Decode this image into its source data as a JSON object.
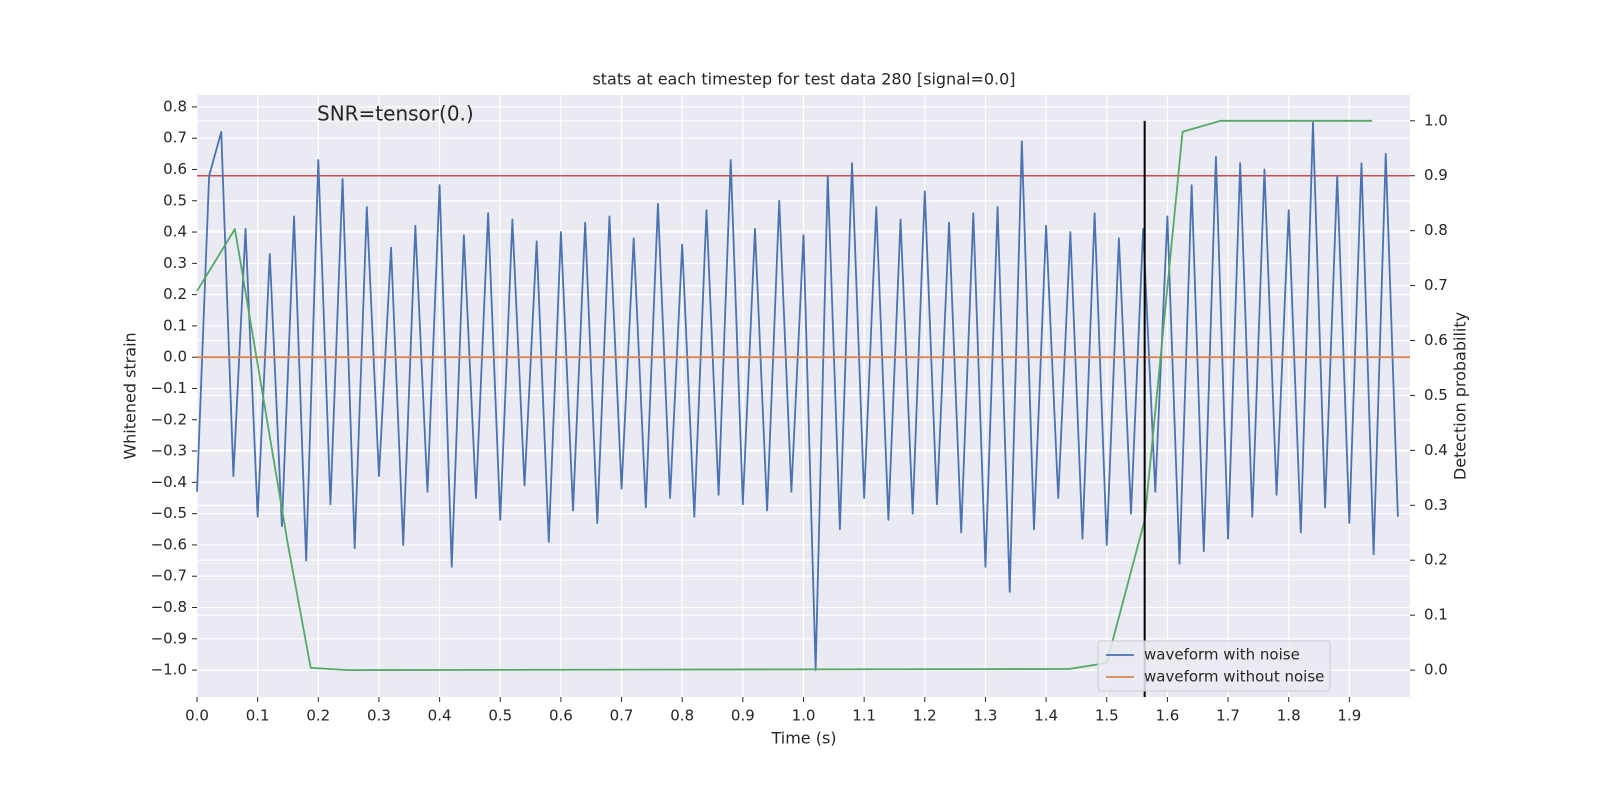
{
  "chart_data": {
    "type": "line",
    "title": "stats at each timestep for test data 280 [signal=0.0]",
    "annotation": "SNR=tensor(0.)",
    "xlabel": "Time (s)",
    "ylabel": "Whitened strain",
    "y2label": "Detection probability",
    "xlim": [
      0,
      2.0
    ],
    "ylim": [
      -1.086,
      0.838
    ],
    "y2lim": [
      -0.049,
      1.047
    ],
    "xticks": [
      {
        "value": 0,
        "label": "0.0"
      },
      0.1,
      0.2,
      0.3,
      0.4,
      0.5,
      0.6,
      0.7,
      0.8,
      0.9,
      {
        "value": 1,
        "label": "1.0"
      },
      1.1,
      1.2,
      1.3,
      1.4,
      1.5,
      1.6,
      1.7,
      1.8,
      1.9
    ],
    "yticks": [
      {
        "value": -1.0,
        "label": "−1.0"
      },
      {
        "value": -0.9,
        "label": "−0.9"
      },
      {
        "value": -0.8,
        "label": "−0.8"
      },
      {
        "value": -0.7,
        "label": "−0.7"
      },
      {
        "value": -0.6,
        "label": "−0.6"
      },
      {
        "value": -0.5,
        "label": "−0.5"
      },
      {
        "value": -0.4,
        "label": "−0.4"
      },
      {
        "value": -0.3,
        "label": "−0.3"
      },
      {
        "value": -0.2,
        "label": "−0.2"
      },
      {
        "value": -0.1,
        "label": "−0.1"
      },
      {
        "value": 0,
        "label": "0.0"
      },
      0.1,
      0.2,
      0.3,
      0.4,
      0.5,
      0.6,
      0.7,
      0.8
    ],
    "y2ticks": [
      {
        "value": 0,
        "label": "0.0"
      },
      0.1,
      0.2,
      0.3,
      0.4,
      0.5,
      0.6,
      0.7,
      0.8,
      0.9,
      {
        "value": 1,
        "label": "1.0"
      }
    ],
    "grid": true,
    "legend": "lower right",
    "series": [
      {
        "name": "waveform with noise",
        "color": "#4c72b0",
        "x": [
          0,
          0.02,
          0.04,
          0.06,
          0.08,
          0.1,
          0.12,
          0.14,
          0.16,
          0.18,
          0.2,
          0.22,
          0.24,
          0.26,
          0.28,
          0.3,
          0.32,
          0.34,
          0.36,
          0.38,
          0.4,
          0.42,
          0.44,
          0.46,
          0.48,
          0.5,
          0.52,
          0.54,
          0.56,
          0.58,
          0.6,
          0.62,
          0.64,
          0.66,
          0.68,
          0.7,
          0.72,
          0.74,
          0.76,
          0.78,
          0.8,
          0.82,
          0.84,
          0.86,
          0.88,
          0.9,
          0.92,
          0.94,
          0.96,
          0.98,
          1.0,
          1.02,
          1.04,
          1.06,
          1.08,
          1.1,
          1.12,
          1.14,
          1.16,
          1.18,
          1.2,
          1.22,
          1.24,
          1.26,
          1.28,
          1.3,
          1.32,
          1.34,
          1.36,
          1.38,
          1.4,
          1.42,
          1.44,
          1.46,
          1.48,
          1.5,
          1.52,
          1.54,
          1.56,
          1.58,
          1.6,
          1.62,
          1.64,
          1.66,
          1.68,
          1.7,
          1.72,
          1.74,
          1.76,
          1.78,
          1.8,
          1.82,
          1.84,
          1.86,
          1.88,
          1.9,
          1.92,
          1.94,
          1.96,
          1.98
        ],
        "values": [
          -0.43,
          0.58,
          0.72,
          -0.38,
          0.41,
          -0.51,
          0.33,
          -0.54,
          0.45,
          -0.65,
          0.63,
          -0.47,
          0.57,
          -0.61,
          0.48,
          -0.38,
          0.35,
          -0.6,
          0.42,
          -0.43,
          0.55,
          -0.67,
          0.39,
          -0.45,
          0.46,
          -0.52,
          0.44,
          -0.41,
          0.37,
          -0.59,
          0.4,
          -0.49,
          0.43,
          -0.53,
          0.45,
          -0.42,
          0.38,
          -0.48,
          0.49,
          -0.45,
          0.36,
          -0.51,
          0.47,
          -0.44,
          0.63,
          -0.47,
          0.41,
          -0.49,
          0.5,
          -0.43,
          0.39,
          -1.0,
          0.58,
          -0.55,
          0.62,
          -0.45,
          0.48,
          -0.52,
          0.44,
          -0.5,
          0.53,
          -0.47,
          0.43,
          -0.56,
          0.46,
          -0.67,
          0.48,
          -0.75,
          0.69,
          -0.55,
          0.42,
          -0.45,
          0.4,
          -0.58,
          0.46,
          -0.6,
          0.38,
          -0.5,
          0.41,
          -0.43,
          0.45,
          -0.66,
          0.55,
          -0.62,
          0.64,
          -0.58,
          0.62,
          -0.51,
          0.6,
          -0.44,
          0.47,
          -0.56,
          0.75,
          -0.48,
          0.58,
          -0.53,
          0.62,
          -0.63,
          0.65,
          -0.51
        ]
      },
      {
        "name": "waveform without noise",
        "color": "#dd8452",
        "x": [
          0,
          2.0
        ],
        "values": [
          0,
          0
        ]
      },
      {
        "color": "#55a868",
        "axis": "y2",
        "x": [
          0,
          0.0625,
          0.15,
          0.1875,
          0.25,
          1.4375,
          1.5,
          1.5625,
          1.625,
          1.6875,
          1.9375
        ],
        "values": [
          0.69,
          0.803,
          0.228,
          0.004,
          0.0,
          0.002,
          0.013,
          0.273,
          0.98,
          1.0,
          1.0
        ]
      }
    ],
    "hlines": [
      {
        "value": 0.9,
        "axis": "y2",
        "color": "#c44e52"
      }
    ],
    "vlines": [
      {
        "value": 1.5625,
        "color": "#000000"
      }
    ]
  }
}
